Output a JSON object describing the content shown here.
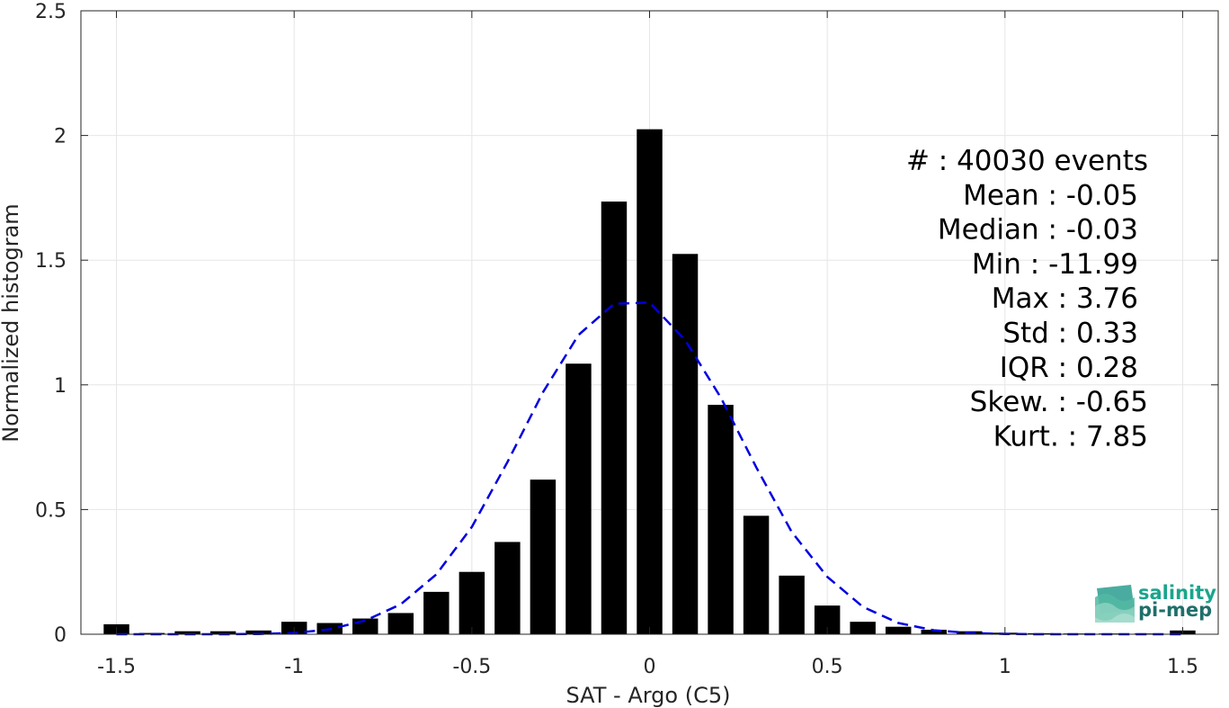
{
  "chart_data": {
    "type": "bar",
    "xlabel": "SAT - Argo (C5)",
    "ylabel": "Normalized histogram",
    "xlim": [
      -1.6,
      1.6
    ],
    "ylim": [
      0,
      2.5
    ],
    "xticks": [
      "-1.5",
      "-1",
      "-0.5",
      "0",
      "0.5",
      "1",
      "1.5"
    ],
    "xtick_values": [
      -1.5,
      -1,
      -0.5,
      0,
      0.5,
      1,
      1.5
    ],
    "yticks": [
      "0",
      "0.5",
      "1",
      "1.5",
      "2",
      "2.5"
    ],
    "ytick_values": [
      0,
      0.5,
      1,
      1.5,
      2,
      2.5
    ],
    "grid": true,
    "bar_color": "#000000",
    "bars": {
      "x": [
        -1.5,
        -1.4,
        -1.3,
        -1.2,
        -1.1,
        -1.0,
        -0.9,
        -0.8,
        -0.7,
        -0.6,
        -0.5,
        -0.4,
        -0.3,
        -0.2,
        -0.1,
        0.0,
        0.1,
        0.2,
        0.3,
        0.4,
        0.5,
        0.6,
        0.7,
        0.8,
        0.9,
        1.0,
        1.1,
        1.2,
        1.3,
        1.4,
        1.5
      ],
      "values": [
        0.04,
        0.005,
        0.012,
        0.012,
        0.015,
        0.05,
        0.045,
        0.063,
        0.085,
        0.17,
        0.25,
        0.37,
        0.62,
        1.085,
        1.735,
        2.025,
        1.525,
        0.92,
        0.475,
        0.235,
        0.115,
        0.05,
        0.03,
        0.018,
        0.012,
        0.006,
        0.004,
        0.003,
        0.003,
        0.003,
        0.015
      ]
    },
    "fit_line": {
      "style": "dashed",
      "color": "#0000e0",
      "x": [
        -1.5,
        -1.4,
        -1.3,
        -1.2,
        -1.1,
        -1.0,
        -0.9,
        -0.8,
        -0.7,
        -0.6,
        -0.5,
        -0.4,
        -0.3,
        -0.2,
        -0.1,
        0.0,
        0.1,
        0.2,
        0.3,
        0.4,
        0.5,
        0.6,
        0.7,
        0.8,
        0.9,
        1.0,
        1.1,
        1.2,
        1.3,
        1.4,
        1.5
      ],
      "y": [
        0.0,
        0.0,
        0.0,
        0.0,
        0.001,
        0.005,
        0.02,
        0.055,
        0.12,
        0.24,
        0.43,
        0.69,
        0.97,
        1.2,
        1.325,
        1.33,
        1.18,
        0.95,
        0.67,
        0.41,
        0.23,
        0.11,
        0.045,
        0.016,
        0.005,
        0.001,
        0.0,
        0.0,
        0.0,
        0.0,
        0.0
      ]
    },
    "annotations": [
      "#  : 40030 events",
      "Mean : -0.05",
      "Median : -0.03",
      "Min : -11.99",
      "Max : 3.76",
      "Std : 0.33",
      "IQR : 0.28",
      "Skew. : -0.65",
      "Kurt. : 7.85"
    ]
  },
  "logo": {
    "line1": "salinity",
    "line2": "pi-mep",
    "color": "#1aa58c"
  }
}
